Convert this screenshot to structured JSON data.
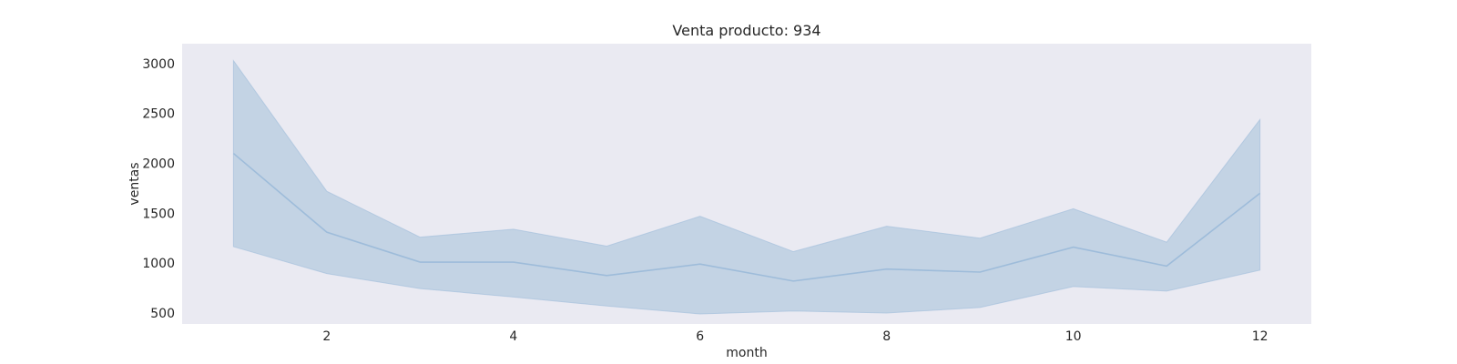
{
  "chart_data": {
    "type": "line",
    "title": "Venta producto: 934",
    "xlabel": "month",
    "ylabel": "ventas",
    "x": [
      1,
      2,
      3,
      4,
      5,
      6,
      7,
      8,
      9,
      10,
      11,
      12
    ],
    "series": [
      {
        "values": [
          2100,
          1310,
          1010,
          1010,
          875,
          990,
          820,
          940,
          910,
          1160,
          970,
          1700
        ],
        "ci_upper": [
          3030,
          1720,
          1260,
          1340,
          1170,
          1470,
          1115,
          1370,
          1250,
          1545,
          1210,
          2440
        ],
        "ci_lower": [
          1165,
          895,
          745,
          660,
          570,
          490,
          520,
          500,
          555,
          765,
          720,
          930
        ]
      }
    ],
    "xticks": [
      2,
      4,
      6,
      8,
      10,
      12
    ],
    "yticks": [
      500,
      1000,
      1500,
      2000,
      2500,
      3000
    ],
    "xlim": [
      0.45,
      12.55
    ],
    "ylim": [
      390,
      3200
    ],
    "grid": false,
    "colors": {
      "plot_bg": "#eaeaf2",
      "line": "#9ebcda",
      "band": "#c3d3e4",
      "text": "#262626"
    }
  }
}
